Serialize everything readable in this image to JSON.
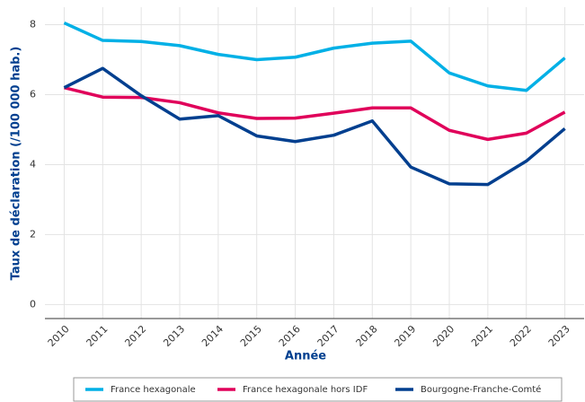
{
  "chart_data": {
    "type": "line",
    "xlabel": "Année",
    "ylabel": "Taux de déclaration (/100 000 hab.)",
    "x": [
      2010,
      2011,
      2012,
      2013,
      2014,
      2015,
      2016,
      2017,
      2018,
      2019,
      2020,
      2021,
      2022,
      2023
    ],
    "series": [
      {
        "name": "France hexagonale",
        "color": "#00b0e6",
        "values": [
          8.05,
          7.55,
          7.52,
          7.4,
          7.15,
          7.0,
          7.07,
          7.33,
          7.47,
          7.53,
          6.62,
          6.25,
          6.12,
          7.05
        ]
      },
      {
        "name": "France hexagonale hors IDF",
        "color": "#e0005a",
        "values": [
          6.2,
          5.93,
          5.92,
          5.77,
          5.48,
          5.32,
          5.33,
          5.47,
          5.62,
          5.62,
          4.98,
          4.72,
          4.9,
          5.5
        ]
      },
      {
        "name": "Bourgogne-Franche-Comté",
        "color": "#003f8f",
        "values": [
          6.2,
          6.75,
          5.97,
          5.3,
          5.4,
          4.82,
          4.66,
          4.84,
          5.25,
          3.93,
          3.45,
          3.43,
          4.1,
          5.03
        ]
      }
    ],
    "xlim": [
      2009.5,
      2023.5
    ],
    "xticks": [
      2010,
      2011,
      2012,
      2013,
      2014,
      2015,
      2016,
      2017,
      2018,
      2019,
      2020,
      2021,
      2022,
      2023
    ],
    "ylim": [
      -0.4,
      8.5
    ],
    "yticks": [
      0,
      2,
      4,
      6,
      8
    ],
    "grid": true,
    "legend": "bottom"
  }
}
